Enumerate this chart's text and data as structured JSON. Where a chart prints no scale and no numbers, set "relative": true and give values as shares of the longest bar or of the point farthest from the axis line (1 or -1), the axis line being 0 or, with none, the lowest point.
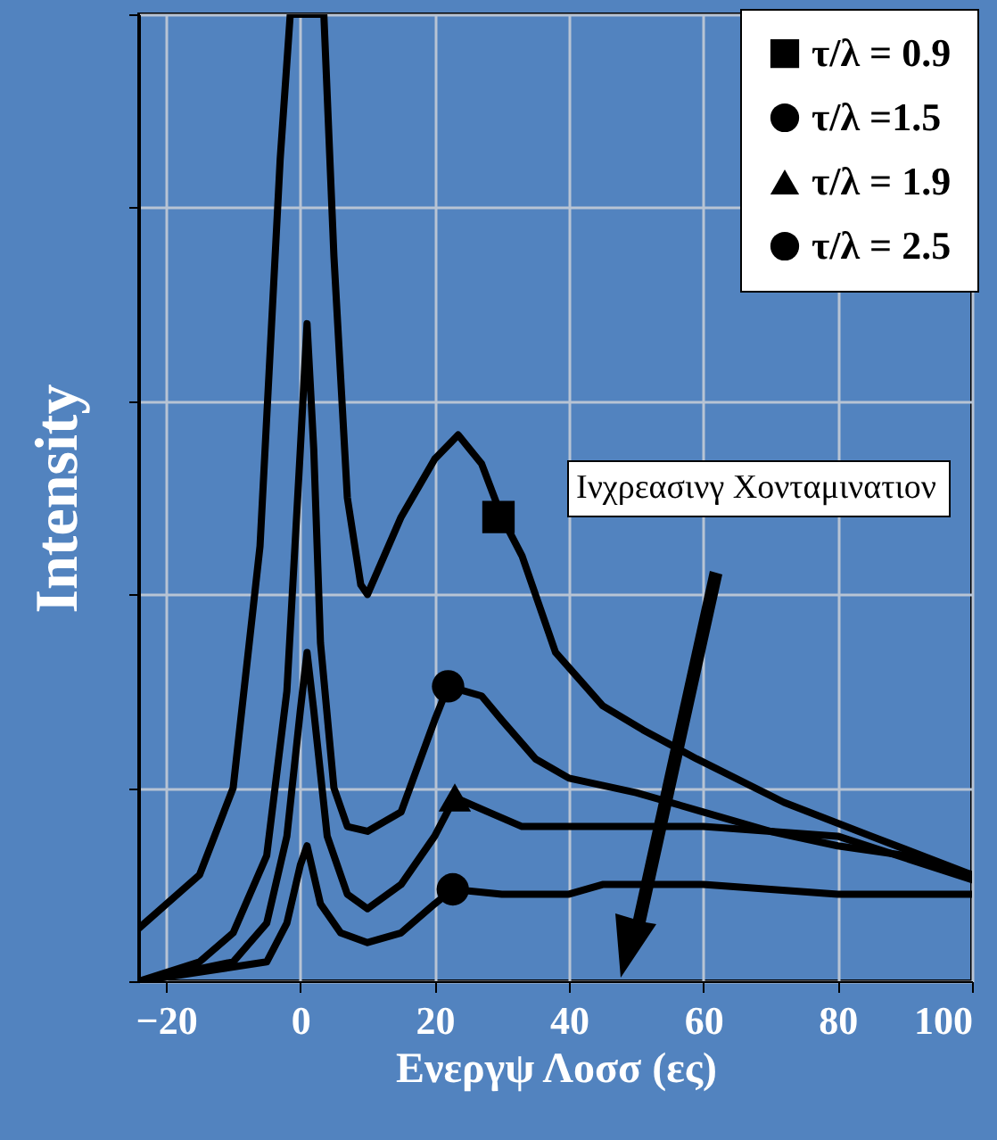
{
  "chart_data": {
    "type": "line",
    "relative": true,
    "xlabel": "Ενεργψ Λοσσ (ες)",
    "ylabel": "Intensity",
    "annotations": [
      "Ινχρεασινγ Χονταμινατιον"
    ],
    "xlim": [
      -24,
      100
    ],
    "xticks": [
      -20,
      0,
      20,
      40,
      60,
      80,
      100
    ],
    "grid": true,
    "legend": "top right",
    "series": [
      {
        "name": "τ/λ = 0.9",
        "color": "#000000",
        "x": [
          -24,
          -15,
          -10,
          -6,
          -3,
          -1.5,
          3.5,
          5,
          7,
          9,
          10,
          15,
          20,
          23.5,
          27,
          30,
          33,
          38,
          45,
          51,
          59,
          72,
          85,
          100
        ],
        "values": [
          0.055,
          0.11,
          0.2,
          0.45,
          0.85,
          1.0,
          1.0,
          0.75,
          0.5,
          0.41,
          0.4,
          0.48,
          0.54,
          0.565,
          0.535,
          0.48,
          0.44,
          0.34,
          0.285,
          0.26,
          0.23,
          0.185,
          0.15,
          0.11
        ]
      },
      {
        "name": "τ/λ =1.5",
        "color": "#000000",
        "x": [
          -24,
          -15,
          -10,
          -5,
          -2,
          0,
          1,
          2,
          3,
          5,
          7,
          10,
          15,
          20,
          22,
          27,
          30,
          35,
          40,
          50,
          60,
          70,
          80,
          90,
          100
        ],
        "values": [
          0.0,
          0.02,
          0.05,
          0.13,
          0.3,
          0.55,
          0.68,
          0.55,
          0.35,
          0.2,
          0.16,
          0.155,
          0.175,
          0.27,
          0.305,
          0.295,
          0.27,
          0.23,
          0.21,
          0.195,
          0.175,
          0.155,
          0.14,
          0.13,
          0.11
        ]
      },
      {
        "name": "τ/λ = 1.9",
        "color": "#000000",
        "x": [
          -24,
          -10,
          -5,
          -2,
          0,
          1,
          2,
          4,
          7,
          10,
          15,
          20,
          23,
          28,
          33,
          40,
          60,
          80,
          100
        ],
        "values": [
          0.0,
          0.02,
          0.06,
          0.15,
          0.28,
          0.34,
          0.28,
          0.15,
          0.09,
          0.075,
          0.1,
          0.15,
          0.19,
          0.175,
          0.16,
          0.16,
          0.16,
          0.15,
          0.105
        ]
      },
      {
        "name": "τ/λ = 2.5",
        "color": "#000000",
        "x": [
          -24,
          -5,
          -2,
          0,
          1,
          3,
          6,
          10,
          15,
          20,
          22.7,
          30,
          40,
          45,
          60,
          80,
          100
        ],
        "values": [
          0.0,
          0.02,
          0.06,
          0.12,
          0.14,
          0.08,
          0.05,
          0.04,
          0.05,
          0.08,
          0.095,
          0.09,
          0.09,
          0.1,
          0.1,
          0.09,
          0.09
        ]
      },
      {
        "type": "scatter",
        "color": "#000000",
        "marker": "square",
        "x": [
          29.5
        ],
        "values": [
          0.48
        ]
      },
      {
        "type": "scatter",
        "color": "#000000",
        "marker": "circle",
        "x": [
          22
        ],
        "values": [
          0.305
        ]
      },
      {
        "type": "scatter",
        "color": "#000000",
        "marker": "triangle",
        "x": [
          23
        ],
        "values": [
          0.19
        ]
      },
      {
        "type": "scatter",
        "color": "#000000",
        "marker": "circle",
        "x": [
          22.7
        ],
        "values": [
          0.095
        ]
      }
    ]
  }
}
